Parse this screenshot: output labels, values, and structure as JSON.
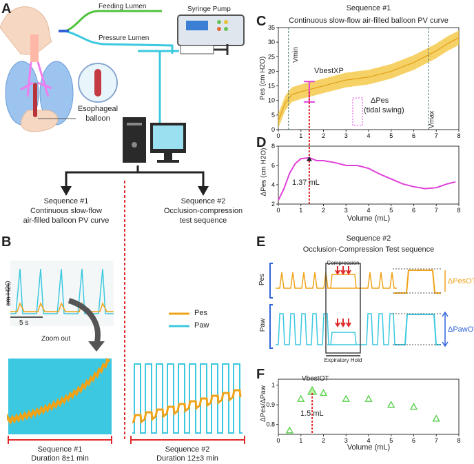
{
  "panel_labels": {
    "A": "A",
    "B": "B",
    "C": "C",
    "D": "D",
    "E": "E",
    "F": "F"
  },
  "panelA": {
    "feeding_lumen": "Feeding Lumen",
    "pressure_lumen": "Pressure Lumen",
    "syringe_pump": "Syringe Pump",
    "balloon_label_1": "Esophageal",
    "balloon_label_2": "balloon",
    "seq1_title": "Sequence #1",
    "seq1_line1": "Continuous slow-flow",
    "seq1_line2": "air-filled balloon PV curve",
    "seq2_title": "Sequence #2",
    "seq2_line1": "Occlusion-compression",
    "seq2_line2": "test sequence"
  },
  "panelB": {
    "ylabel": "cm H2O",
    "scale": "5 s",
    "zoom": "Zoom out",
    "legend_pes": "Pes",
    "legend_paw": "Paw",
    "seq1_name": "Sequence #1",
    "seq1_duration": "Duration 8±1 min",
    "seq2_name": "Sequence #2",
    "seq2_duration": "Duration 12±3 min"
  },
  "panelC": {
    "header": "Sequence #1",
    "title": "Continuous slow-flow air-filled balloon PV curve",
    "ylabel": "Pes (cm H2O)",
    "vmin": "Vmin",
    "vmax": "Vmax",
    "vbest": "VbestXP",
    "delta": "ΔPes",
    "tidal": "(tidal swing)"
  },
  "panelD": {
    "ylabel": "ΔPes (cm H2O)",
    "xlabel": "Volume (mL)",
    "annot": "1.37 mL"
  },
  "panelE": {
    "header": "Sequence #2",
    "title": "Occlusion-Compression Test sequence",
    "compression": "Compression",
    "expiratory_hold": "Expiratory Hold",
    "pes": "Pes",
    "paw": "Paw",
    "dpes": "ΔPesOT",
    "dpaw": "ΔPawOT"
  },
  "panelF": {
    "ylabel": "ΔPes/ΔPaw",
    "xlabel": "Volume (mL)",
    "vbest": "VbestOT",
    "annot": "1.5 mL"
  },
  "colors": {
    "pes": "#f0a318",
    "paw": "#3cc8e0",
    "magenta": "#e040d8",
    "green": "#5ad24a",
    "red": "#e02a2a",
    "blue": "#2f62d8"
  },
  "chart_data": [
    {
      "type": "line",
      "title": "Continuous slow-flow air-filled balloon PV curve",
      "xlabel": "Volume (mL)",
      "ylabel": "Pes (cm H2O)",
      "xlim": [
        0,
        8
      ],
      "ylim": [
        0,
        35
      ],
      "x_ticks": [
        0,
        1,
        2,
        3,
        4,
        5,
        6,
        7,
        8
      ],
      "y_ticks": [
        0,
        5,
        10,
        15,
        20,
        25,
        30,
        35
      ],
      "x": [
        0,
        0.3,
        0.6,
        1,
        1.5,
        2,
        2.5,
        3,
        3.5,
        4,
        4.5,
        5,
        5.5,
        6,
        6.5,
        7,
        7.5,
        8
      ],
      "values": [
        3,
        9,
        12,
        13,
        14,
        15,
        16,
        17,
        17.5,
        18,
        19,
        20,
        21.5,
        23,
        25,
        27,
        29.5,
        31.5
      ],
      "vmin": 0.45,
      "vmax": 6.65,
      "vbest_range": [
        9.5,
        16.5
      ]
    },
    {
      "type": "line",
      "xlabel": "Volume (mL)",
      "ylabel": "ΔPes (cm H2O)",
      "xlim": [
        0,
        8
      ],
      "ylim": [
        2,
        8
      ],
      "x_ticks": [
        0,
        1,
        2,
        3,
        4,
        5,
        6,
        7,
        8
      ],
      "y_ticks": [
        2,
        4,
        6,
        8
      ],
      "x": [
        0,
        0.25,
        0.5,
        0.75,
        1,
        1.37,
        1.7,
        2,
        2.5,
        3,
        3.5,
        4,
        4.5,
        5,
        5.5,
        6,
        6.5,
        7,
        7.5,
        7.85
      ],
      "values": [
        2.4,
        3.6,
        5.2,
        6.2,
        6.7,
        6.8,
        6.5,
        6.5,
        6.3,
        6.0,
        6.0,
        5.7,
        5.1,
        4.6,
        4.1,
        3.8,
        3.6,
        3.7,
        4.1,
        4.3
      ],
      "peak_x": 1.37
    },
    {
      "type": "scatter",
      "xlabel": "Volume (mL)",
      "ylabel": "ΔPes/ΔPaw",
      "xlim": [
        0,
        8
      ],
      "ylim": [
        0.75,
        1.03
      ],
      "x_ticks": [
        0,
        1,
        2,
        3,
        4,
        5,
        6,
        7,
        8
      ],
      "y_ticks": [
        0.8,
        0.9,
        1
      ],
      "x": [
        0.5,
        1,
        1.5,
        2,
        3,
        4,
        5,
        6,
        7
      ],
      "values": [
        0.77,
        0.93,
        0.97,
        0.96,
        0.93,
        0.93,
        0.9,
        0.89,
        0.83
      ],
      "best_x": 1.5
    }
  ]
}
